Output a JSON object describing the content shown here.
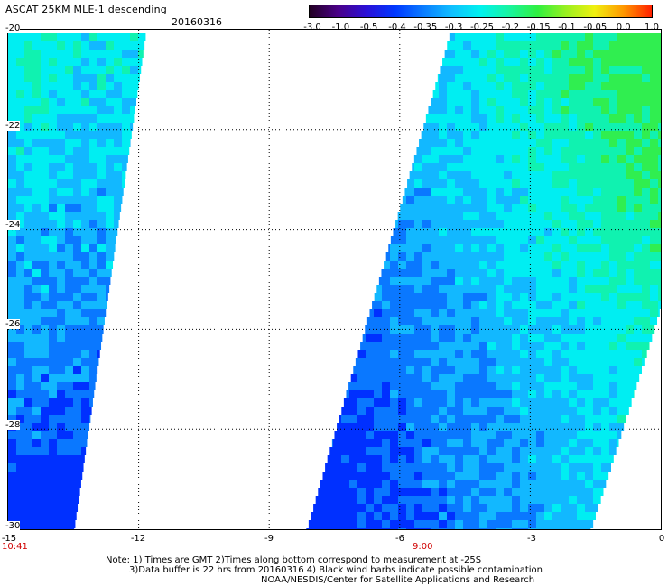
{
  "header": {
    "title": "ASCAT 25KM MLE-1 descending",
    "date": "20160316"
  },
  "colorbar": {
    "tick_labels": [
      "-3.0",
      "-1.0",
      "-0.5",
      "-0.4",
      "-0.35",
      "-0.3",
      "-0.25",
      "-0.2",
      "-0.15",
      "-0.1",
      "-0.05",
      "0.0",
      "1.0"
    ],
    "colors": [
      "#220022",
      "#4a0088",
      "#2a10d8",
      "#0038ff",
      "#0a7cff",
      "#10c0ff",
      "#00f2ee",
      "#18f4a0",
      "#30f040",
      "#9af020",
      "#f0f010",
      "#ff9800",
      "#ff2000"
    ]
  },
  "axes": {
    "x_ticks": [
      "-15",
      "-12",
      "-9",
      "-6",
      "-3",
      "0"
    ],
    "y_ticks": [
      "-20",
      "-22",
      "-24",
      "-26",
      "-28",
      "-30"
    ]
  },
  "pass_times": [
    {
      "label": "10:41"
    },
    {
      "label": "9:00"
    }
  ],
  "notes": {
    "line1": "Note: 1) Times are GMT 2)Times along bottom correspond to measurement at -25S",
    "line2": "3)Data buffer is 22 hrs from 20160316 4) Black wind barbs indicate possible contamination",
    "line3": "NOAA/NESDIS/Center for Satellite Applications and Research"
  },
  "map": {
    "lon_range": [
      -15,
      0
    ],
    "lat_range": [
      -30,
      -20
    ],
    "color_scale": [
      "#0030ff",
      "#0a78ff",
      "#12b8ff",
      "#00eef2",
      "#10f2b0",
      "#30ee50"
    ]
  }
}
